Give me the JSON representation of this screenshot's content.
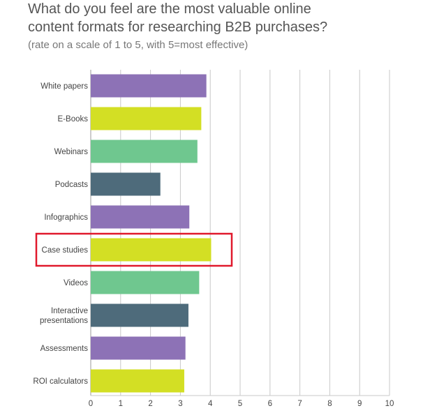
{
  "title_line1": "What do you feel are the most valuable online",
  "title_line2": "content formats for researching B2B purchases?",
  "subtitle": "(rate on a scale of 1 to 5, with 5=most effective)",
  "colors": {
    "purple": "#8d72b6",
    "lime": "#d3df24",
    "green": "#6fc78f",
    "slate": "#4e6b7b",
    "highlight": "#e0192c",
    "grid": "#c8c8c8"
  },
  "chart_data": {
    "type": "bar",
    "orientation": "horizontal",
    "categories": [
      [
        "White papers"
      ],
      [
        "E-Books"
      ],
      [
        "Webinars"
      ],
      [
        "Podcasts"
      ],
      [
        "Infographics"
      ],
      [
        "Case studies"
      ],
      [
        "Videos"
      ],
      [
        "Interactive",
        "presentations"
      ],
      [
        "Assessments"
      ],
      [
        "ROI calculators"
      ]
    ],
    "values": [
      3.87,
      3.7,
      3.57,
      2.33,
      3.3,
      4.03,
      3.63,
      3.27,
      3.17,
      3.13
    ],
    "bar_colors": [
      "purple",
      "lime",
      "green",
      "slate",
      "purple",
      "lime",
      "green",
      "slate",
      "purple",
      "lime"
    ],
    "xlim": [
      0,
      10
    ],
    "ticks": [
      0,
      1,
      2,
      3,
      4,
      5,
      6,
      7,
      8,
      9,
      10
    ],
    "highlighted_category_index": 5,
    "grid": true
  }
}
